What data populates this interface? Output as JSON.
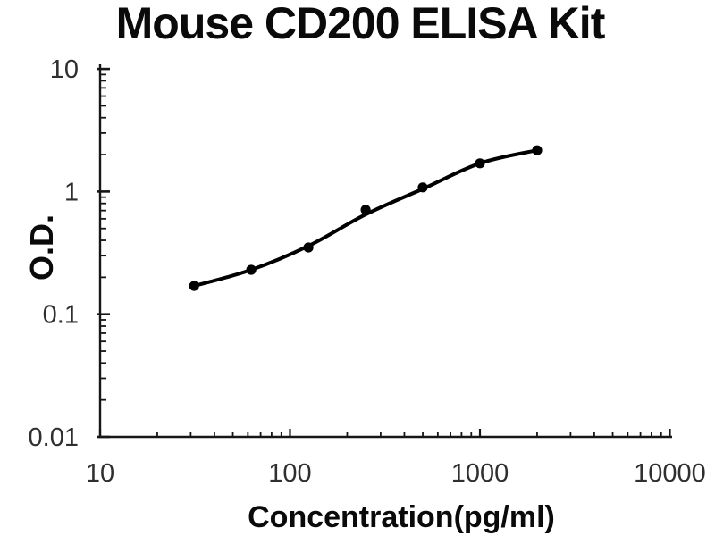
{
  "colors": {
    "background": "#ffffff",
    "ink": "#161616",
    "tick_label": "#2f2f2f",
    "title_text": "#0a0a0a",
    "curve": "#000000",
    "point": "#000000"
  },
  "chart_data": {
    "type": "scatter",
    "title": "Mouse CD200 ELISA Kit",
    "xlabel": "Concentration(pg/ml)",
    "ylabel": "O.D.",
    "x_scale": "log",
    "y_scale": "log",
    "xlim": [
      10,
      10000
    ],
    "ylim": [
      0.01,
      10
    ],
    "x_ticks": [
      10,
      100,
      1000,
      10000
    ],
    "x_tick_labels": [
      "10",
      "100",
      "1000",
      "10000"
    ],
    "y_ticks": [
      0.01,
      0.1,
      1,
      10
    ],
    "y_tick_labels": [
      "0.01",
      "0.1",
      "1",
      "10"
    ],
    "grid": false,
    "legend": "none",
    "series": [
      {
        "name": "standard-points",
        "type": "scatter",
        "x": [
          31.25,
          62.5,
          125,
          250,
          500,
          1000,
          2000
        ],
        "y": [
          0.17,
          0.23,
          0.35,
          0.71,
          1.08,
          1.7,
          2.17
        ]
      },
      {
        "name": "fitted-curve",
        "type": "line",
        "x": [
          31.25,
          62.5,
          125,
          250,
          500,
          1000,
          2000
        ],
        "y": [
          0.17,
          0.23,
          0.36,
          0.65,
          1.05,
          1.7,
          2.17
        ]
      }
    ]
  }
}
